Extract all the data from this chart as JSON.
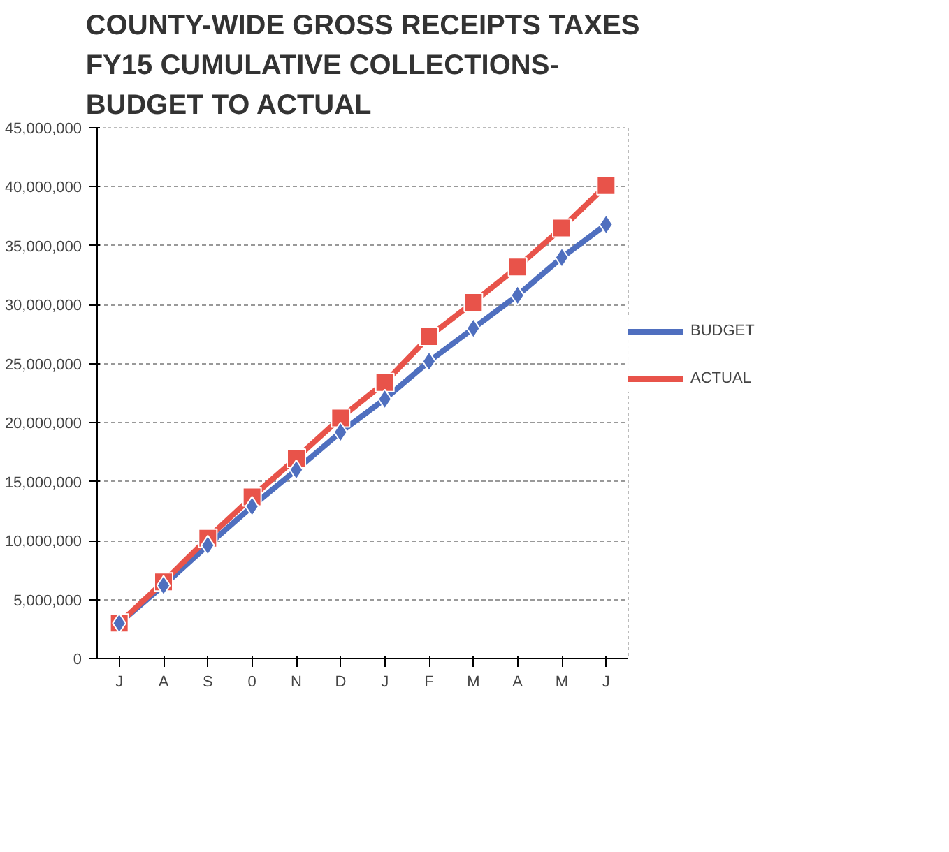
{
  "chart_data": {
    "type": "line",
    "title": "COUNTY-WIDE GROSS RECEIPTS TAXES\nFY15 CUMULATIVE COLLECTIONS-\nBUDGET TO ACTUAL",
    "categories": [
      "J",
      "A",
      "S",
      "0",
      "N",
      "D",
      "J",
      "F",
      "M",
      "A",
      "M",
      "J"
    ],
    "series": [
      {
        "name": "BUDGET",
        "color": "#4f6fbf",
        "marker": "diamond",
        "values": [
          3000000,
          6200000,
          9600000,
          12900000,
          16000000,
          19200000,
          22000000,
          25200000,
          28000000,
          30800000,
          34000000,
          36800000
        ]
      },
      {
        "name": "ACTUAL",
        "color": "#e8534a",
        "marker": "square",
        "values": [
          3000000,
          6500000,
          10200000,
          13700000,
          17000000,
          20400000,
          23400000,
          27300000,
          30200000,
          33200000,
          36500000,
          40100000
        ]
      }
    ],
    "ylim": [
      0,
      45000000
    ],
    "yticks": [
      {
        "value": 0,
        "label": "0"
      },
      {
        "value": 5000000,
        "label": "5,000,000"
      },
      {
        "value": 10000000,
        "label": "10,000,000"
      },
      {
        "value": 15000000,
        "label": "15,000,000"
      },
      {
        "value": 20000000,
        "label": "20,000,000"
      },
      {
        "value": 25000000,
        "label": "25,000,000"
      },
      {
        "value": 30000000,
        "label": "30,000,000"
      },
      {
        "value": 35000000,
        "label": "35,000,000"
      },
      {
        "value": 40000000,
        "label": "40,000,000"
      },
      {
        "value": 45000000,
        "label": "45,000,000"
      }
    ],
    "grid": "y",
    "legend": "right"
  }
}
